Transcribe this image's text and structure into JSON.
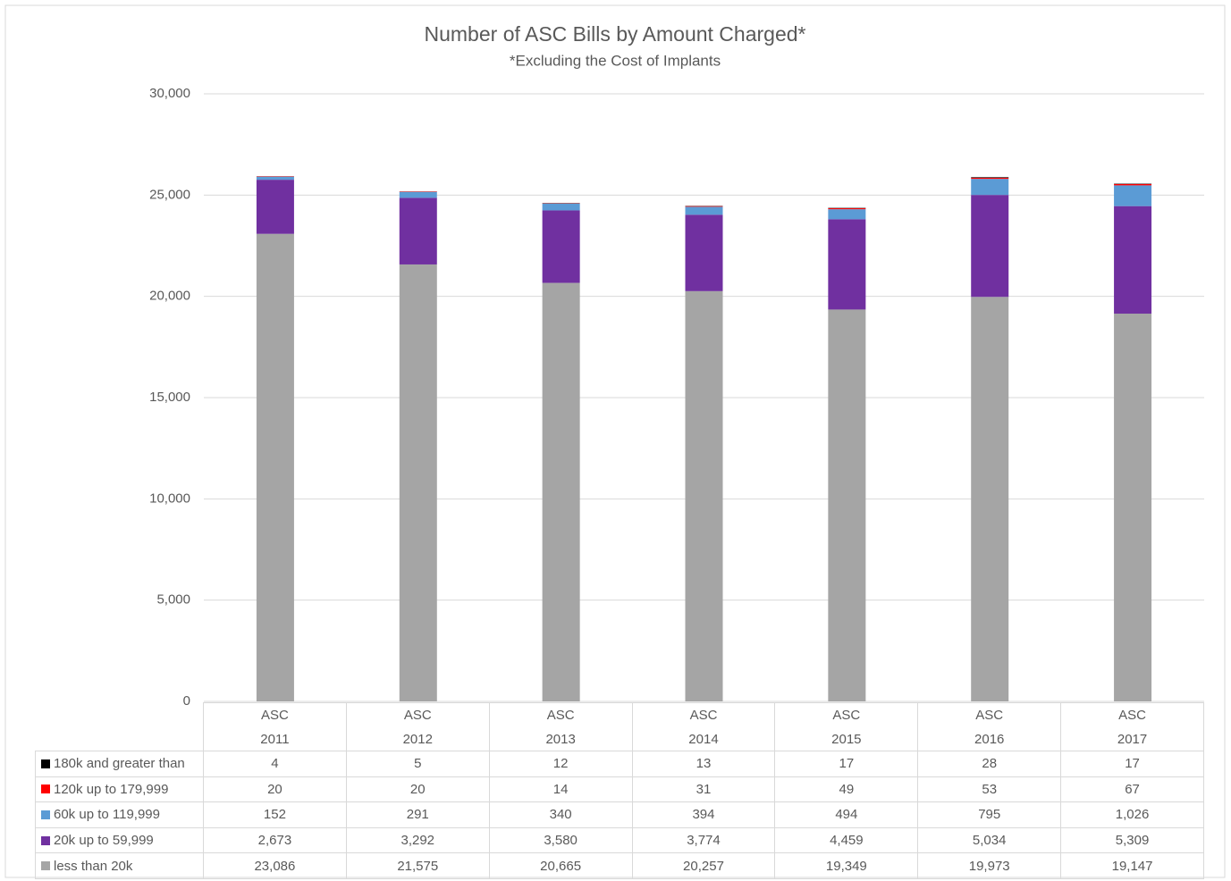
{
  "chart_data": {
    "type": "bar",
    "stacked": true,
    "title": "Number of ASC Bills by Amount Charged*",
    "subtitle": "*Excluding the Cost of Implants",
    "categories": [
      "ASC 2011",
      "ASC 2012",
      "ASC 2013",
      "ASC 2014",
      "ASC 2015",
      "ASC 2016",
      "ASC 2017"
    ],
    "series": [
      {
        "name": "180k and greater than",
        "color": "#000000",
        "values": [
          4,
          5,
          12,
          13,
          17,
          28,
          17
        ]
      },
      {
        "name": "120k up to 179,999",
        "color": "#ff0000",
        "values": [
          20,
          20,
          14,
          31,
          49,
          53,
          67
        ]
      },
      {
        "name": "60k up to 119,999",
        "color": "#5b9bd5",
        "values": [
          152,
          291,
          340,
          394,
          494,
          795,
          1026
        ],
        "value_labels": [
          "152",
          "291",
          "340",
          "394",
          "494",
          "795",
          "1,026"
        ]
      },
      {
        "name": "20k up to 59,999",
        "color": "#7030a0",
        "values": [
          2673,
          3292,
          3580,
          3774,
          4459,
          5034,
          5309
        ],
        "value_labels": [
          "2,673",
          "3,292",
          "3,580",
          "3,774",
          "4,459",
          "5,034",
          "5,309"
        ]
      },
      {
        "name": "less than 20k",
        "color": "#a5a5a5",
        "values": [
          23086,
          21575,
          20665,
          20257,
          19349,
          19973,
          19147
        ],
        "value_labels": [
          "23,086",
          "21,575",
          "20,665",
          "20,257",
          "19,349",
          "19,973",
          "19,147"
        ]
      }
    ],
    "ylim": [
      0,
      30000
    ],
    "yticks": [
      0,
      {
        "value": 5000,
        "label": "5,000"
      },
      {
        "value": 10000,
        "label": "10,000"
      },
      {
        "value": 15000,
        "label": "15,000"
      },
      {
        "value": 20000,
        "label": "20,000"
      },
      {
        "value": 25000,
        "label": "25,000"
      },
      {
        "value": 30000,
        "label": "30,000"
      }
    ],
    "grid": true
  }
}
